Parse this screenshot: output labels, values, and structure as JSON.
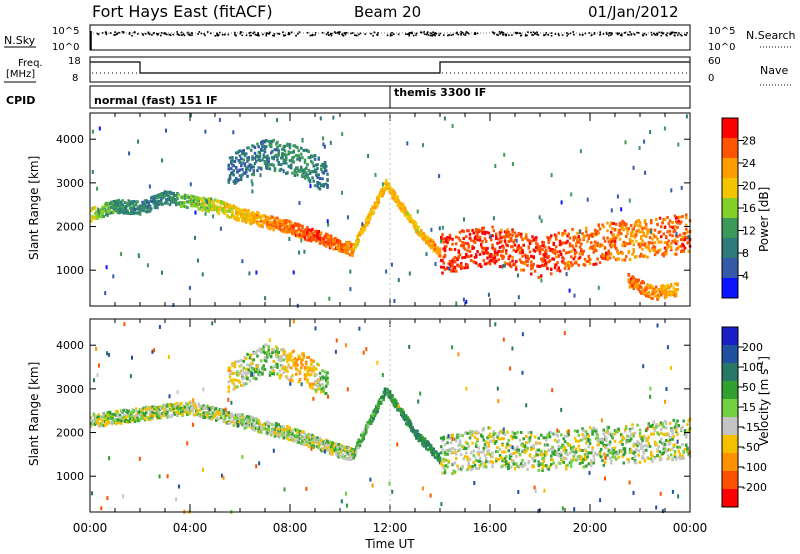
{
  "header": {
    "station": "Fort Hays East (fitACF)",
    "beam": "Beam 20",
    "date": "01/Jan/2012"
  },
  "side_labels": {
    "nsky": "N.Sky",
    "nsearch": "N.Search",
    "freq_line1": "Freq.",
    "freq_line2": "[MHz]",
    "nave": "Nave",
    "cpid": "CPID"
  },
  "noise_panel": {
    "left_ticks": [
      "10^5",
      "10^0"
    ],
    "right_ticks": [
      "10^5",
      "10^0"
    ]
  },
  "freq_panel": {
    "left_ticks": [
      "18",
      "8"
    ],
    "right_ticks": [
      "60",
      "0"
    ]
  },
  "cpid_panel": {
    "modes": [
      {
        "label": "normal (fast) 151 IF",
        "start_hour": 0,
        "end_hour": 12
      },
      {
        "label": "themis 3300 IF",
        "start_hour": 12,
        "end_hour": 24
      }
    ]
  },
  "axes": {
    "xlabel": "Time UT",
    "ylabel": "Slant Range [km]",
    "x_ticks": [
      "00:00",
      "04:00",
      "08:00",
      "12:00",
      "16:00",
      "20:00",
      "00:00"
    ],
    "y_ticks": [
      "1000",
      "2000",
      "3000",
      "4000"
    ]
  },
  "colorbars": {
    "power": {
      "label": "Power [dB]",
      "ticks": [
        "28",
        "24",
        "20",
        "16",
        "12",
        "8",
        "4"
      ],
      "colors": [
        "#ff0000",
        "#ff5500",
        "#ff9d00",
        "#f5c400",
        "#85cf2a",
        "#3b9a5a",
        "#2f7a7a",
        "#345aa8",
        "#0a12ff"
      ]
    },
    "velocity": {
      "label": "Velocity [m s^-1]",
      "ticks": [
        "200",
        "100",
        "50",
        "15",
        "-15",
        "-50",
        "-100",
        "-200"
      ],
      "colors": [
        "#1a20c8",
        "#2050a0",
        "#287868",
        "#30a030",
        "#70d040",
        "#c4c4c4",
        "#f5c000",
        "#ff9000",
        "#ff5000",
        "#ff0000"
      ]
    }
  },
  "chart_data": [
    {
      "type": "heatmap",
      "name": "power",
      "xlabel": "Time UT",
      "ylabel": "Slant Range [km]",
      "xlim": [
        0,
        24
      ],
      "ylim": [
        180,
        4600
      ],
      "colorbar_label": "Power [dB]",
      "colorbar_range": [
        3,
        30
      ],
      "echo_bands": [
        {
          "x": [
            0.0,
            1.0,
            2.0,
            3.0,
            4.0,
            5.0,
            6.0,
            7.0,
            8.0,
            9.0,
            10.0,
            10.5
          ],
          "y": [
            2300,
            2500,
            2450,
            2700,
            2600,
            2500,
            2300,
            2150,
            2000,
            1800,
            1600,
            1500
          ],
          "width": 300,
          "power": [
            18,
            12,
            10,
            10,
            16,
            18,
            20,
            24,
            26,
            27,
            26,
            24
          ]
        },
        {
          "x": [
            10.5,
            11.8,
            13.0,
            14.0
          ],
          "y": [
            1550,
            3000,
            2000,
            1400
          ],
          "width": 200,
          "power": [
            20,
            22,
            20,
            24
          ]
        },
        {
          "x": [
            14.0,
            15.0,
            16.0,
            17.0,
            18.0,
            19.0,
            20.0,
            21.0,
            22.0,
            23.0,
            24.0
          ],
          "y": [
            1400,
            1500,
            1600,
            1500,
            1300,
            1500,
            1600,
            1700,
            1750,
            1800,
            1900
          ],
          "width": 900,
          "power": [
            28,
            28,
            28,
            27,
            28,
            27,
            26,
            26,
            24,
            26,
            27
          ]
        },
        {
          "x": [
            5.5,
            7.0,
            8.5,
            9.5
          ],
          "y": [
            3300,
            3700,
            3500,
            3100
          ],
          "width": 700,
          "power": [
            8,
            10,
            12,
            8
          ]
        },
        {
          "x": [
            21.5,
            22.5,
            23.5
          ],
          "y": [
            800,
            500,
            600
          ],
          "width": 300,
          "power": [
            26,
            24,
            22
          ]
        }
      ]
    },
    {
      "type": "heatmap",
      "name": "velocity",
      "xlabel": "Time UT",
      "ylabel": "Slant Range [km]",
      "xlim": [
        0,
        24
      ],
      "ylim": [
        180,
        4600
      ],
      "colorbar_label": "Velocity [m s^-1]",
      "colorbar_range": [
        -250,
        250
      ],
      "echo_bands": [
        {
          "x": [
            0.0,
            2.0,
            4.0,
            6.0,
            8.0,
            10.0,
            10.5
          ],
          "y": [
            2300,
            2450,
            2600,
            2300,
            2000,
            1600,
            1500
          ],
          "width": 300,
          "velocity": [
            0,
            0,
            0,
            0,
            0,
            0,
            0
          ]
        },
        {
          "x": [
            10.5,
            11.8,
            13.0,
            14.0
          ],
          "y": [
            1550,
            3000,
            2000,
            1400
          ],
          "width": 200,
          "velocity": [
            0,
            40,
            60,
            40
          ]
        },
        {
          "x": [
            14.0,
            16.0,
            18.0,
            20.0,
            22.0,
            24.0
          ],
          "y": [
            1500,
            1700,
            1600,
            1700,
            1800,
            1900
          ],
          "width": 900,
          "velocity": [
            0,
            0,
            0,
            0,
            0,
            0
          ]
        },
        {
          "x": [
            5.5,
            7.0,
            8.5,
            9.5
          ],
          "y": [
            3300,
            3700,
            3500,
            3100
          ],
          "width": 700,
          "velocity": [
            -30,
            20,
            -60,
            30
          ]
        }
      ]
    }
  ]
}
